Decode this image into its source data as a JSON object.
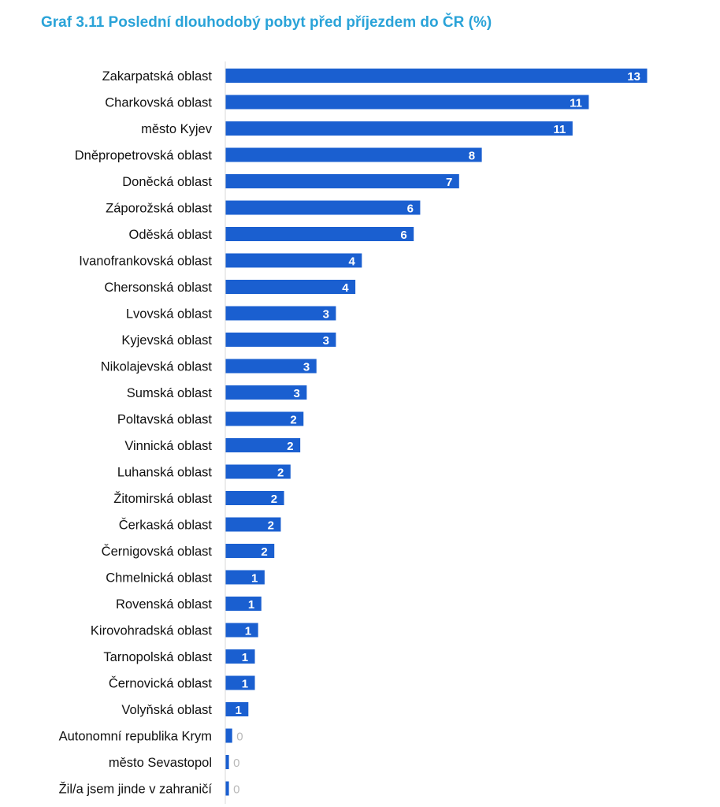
{
  "chart_data": {
    "type": "bar",
    "orientation": "horizontal",
    "title": "Graf 3.11 Poslední dlouhodobý pobyt před příjezdem do ČR (%)",
    "xlabel": "",
    "ylabel": "",
    "xlim": [
      0,
      13
    ],
    "grid": false,
    "legend": "none",
    "bar_color": "#1a5fd0",
    "title_color": "#2aa3d8",
    "categories": [
      "Zakarpatská oblast",
      "Charkovská oblast",
      "město Kyjev",
      "Dněpropetrovská oblast",
      "Doněcká oblast",
      "Záporožská oblast",
      "Oděská oblast",
      "Ivanofrankovská oblast",
      "Chersonská oblast",
      "Lvovská oblast",
      "Kyjevská oblast",
      "Nikolajevská oblast",
      "Sumská oblast",
      "Poltavská oblast",
      "Vinnická oblast",
      "Luhanská oblast",
      "Žitomirská oblast",
      "Čerkaská oblast",
      "Černigovská oblast",
      "Chmelnická oblast",
      "Rovenská oblast",
      "Kirovohradská oblast",
      "Tarnopolská oblast",
      "Černovická oblast",
      "Volyňská oblast",
      "Autonomní republika Krym",
      "město Sevastopol",
      "Žil/a jsem jinde v zahraničí"
    ],
    "values": [
      13.0,
      11.2,
      10.7,
      7.9,
      7.2,
      6.0,
      5.8,
      4.2,
      4.0,
      3.4,
      3.4,
      2.8,
      2.5,
      2.4,
      2.3,
      2.0,
      1.8,
      1.7,
      1.5,
      1.2,
      1.1,
      1.0,
      0.9,
      0.9,
      0.7,
      0.2,
      0.1,
      0.1
    ],
    "data_labels": [
      "13",
      "11",
      "11",
      "8",
      "7",
      "6",
      "6",
      "4",
      "4",
      "3",
      "3",
      "3",
      "3",
      "2",
      "2",
      "2",
      "2",
      "2",
      "2",
      "1",
      "1",
      "1",
      "1",
      "1",
      "1",
      "0",
      "0",
      "0"
    ]
  }
}
